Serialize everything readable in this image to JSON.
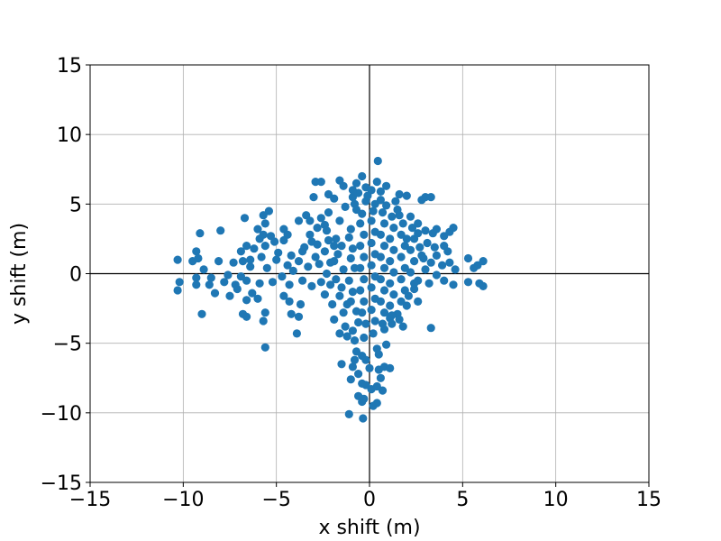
{
  "chart_data": {
    "type": "scatter",
    "title": "",
    "xlabel": "x shift (m)",
    "ylabel": "y shift (m)",
    "xlim": [
      -15,
      15
    ],
    "ylim": [
      -15,
      15
    ],
    "xticks": [
      -15,
      -10,
      -5,
      0,
      5,
      10,
      15
    ],
    "yticks": [
      -15,
      -10,
      -5,
      0,
      5,
      10,
      15
    ],
    "xtick_labels": [
      "−15",
      "−10",
      "−5",
      "0",
      "5",
      "10",
      "15"
    ],
    "ytick_labels": [
      "−15",
      "−10",
      "−5",
      "0",
      "5",
      "10",
      "15"
    ],
    "grid": true,
    "zero_lines": true,
    "marker_color": "#1f77b4",
    "series": [
      {
        "points": [
          [
            0.45,
            8.1
          ],
          [
            -0.4,
            7.0
          ],
          [
            0.9,
            6.3
          ],
          [
            -1.6,
            6.7
          ],
          [
            -2.9,
            6.6
          ],
          [
            -2.6,
            6.6
          ],
          [
            -1.4,
            6.3
          ],
          [
            -0.7,
            6.5
          ],
          [
            -0.2,
            6.2
          ],
          [
            0.1,
            6.0
          ],
          [
            0.6,
            5.9
          ],
          [
            1.6,
            5.7
          ],
          [
            2.0,
            5.6
          ],
          [
            3.0,
            5.5
          ],
          [
            3.3,
            5.5
          ],
          [
            -2.2,
            5.7
          ],
          [
            -3.0,
            5.5
          ],
          [
            -1.9,
            5.4
          ],
          [
            -0.9,
            5.5
          ],
          [
            0.6,
            5.3
          ],
          [
            2.8,
            5.3
          ],
          [
            -5.4,
            4.5
          ],
          [
            -5.7,
            4.2
          ],
          [
            -6.7,
            4.0
          ],
          [
            -3.4,
            4.2
          ],
          [
            -2.6,
            4.0
          ],
          [
            -3.2,
            3.8
          ],
          [
            -2.4,
            3.5
          ],
          [
            -4.6,
            3.2
          ],
          [
            -3.8,
            3.8
          ],
          [
            -5.6,
            3.6
          ],
          [
            -6.0,
            3.2
          ],
          [
            -5.7,
            2.8
          ],
          [
            -5.3,
            2.7
          ],
          [
            -8.0,
            3.1
          ],
          [
            -9.1,
            2.9
          ],
          [
            -4.4,
            2.8
          ],
          [
            -4.6,
            2.4
          ],
          [
            -3.1,
            2.3
          ],
          [
            -2.8,
            2.1
          ],
          [
            -5.6,
            2.0
          ],
          [
            -6.2,
            1.8
          ],
          [
            -6.6,
            2.0
          ],
          [
            -6.9,
            1.6
          ],
          [
            -9.3,
            1.6
          ],
          [
            -5.8,
            1.2
          ],
          [
            -5.0,
            1.0
          ],
          [
            -4.2,
            1.3
          ],
          [
            -3.6,
            1.6
          ],
          [
            -2.9,
            1.2
          ],
          [
            -6.8,
            0.9
          ],
          [
            -7.3,
            0.8
          ],
          [
            -8.1,
            0.9
          ],
          [
            -9.2,
            1.1
          ],
          [
            -9.5,
            0.9
          ],
          [
            -10.3,
            1.0
          ],
          [
            -8.9,
            0.3
          ],
          [
            -6.4,
            0.5
          ],
          [
            -5.5,
            0.4
          ],
          [
            -4.4,
            0.6
          ],
          [
            -3.3,
            0.5
          ],
          [
            -2.7,
            0.7
          ],
          [
            -8.5,
            -0.3
          ],
          [
            -9.3,
            -0.3
          ],
          [
            -7.8,
            -0.6
          ],
          [
            -7.2,
            -0.8
          ],
          [
            -6.6,
            -0.5
          ],
          [
            -5.9,
            -0.7
          ],
          [
            -5.2,
            -0.6
          ],
          [
            -4.3,
            -0.8
          ],
          [
            -3.6,
            -0.5
          ],
          [
            -3.1,
            -0.9
          ],
          [
            -2.6,
            -0.6
          ],
          [
            -10.2,
            -0.6
          ],
          [
            -10.3,
            -1.2
          ],
          [
            -9.3,
            -0.8
          ],
          [
            -8.3,
            -1.4
          ],
          [
            -7.1,
            -1.1
          ],
          [
            -6.3,
            -1.4
          ],
          [
            -6.6,
            -1.9
          ],
          [
            -6.0,
            -1.8
          ],
          [
            -4.6,
            -1.6
          ],
          [
            -4.3,
            -2.0
          ],
          [
            -3.7,
            -2.2
          ],
          [
            -9.0,
            -2.9
          ],
          [
            -6.8,
            -2.9
          ],
          [
            -6.6,
            -3.1
          ],
          [
            -5.6,
            -2.8
          ],
          [
            -5.7,
            -3.4
          ],
          [
            -4.2,
            -2.9
          ],
          [
            -3.8,
            -3.1
          ],
          [
            -3.9,
            -4.3
          ],
          [
            -5.6,
            -5.3
          ],
          [
            -1.9,
            -3.3
          ],
          [
            -1.6,
            -4.3
          ],
          [
            -1.2,
            -4.5
          ],
          [
            -0.8,
            -4.8
          ],
          [
            -0.3,
            -4.6
          ],
          [
            0.2,
            -4.3
          ],
          [
            0.8,
            -4.0
          ],
          [
            1.2,
            -3.6
          ],
          [
            1.8,
            -3.8
          ],
          [
            3.3,
            -3.9
          ],
          [
            -1.5,
            -6.5
          ],
          [
            -0.9,
            -6.7
          ],
          [
            -0.7,
            -5.6
          ],
          [
            -0.4,
            -5.9
          ],
          [
            -0.2,
            -6.2
          ],
          [
            0.4,
            -5.4
          ],
          [
            0.9,
            -5.1
          ],
          [
            -1.0,
            -7.6
          ],
          [
            -0.6,
            -7.2
          ],
          [
            -0.4,
            -7.9
          ],
          [
            -0.2,
            -8.0
          ],
          [
            0.5,
            -6.9
          ],
          [
            0.8,
            -6.7
          ],
          [
            1.1,
            -6.8
          ],
          [
            -0.6,
            -8.8
          ],
          [
            -0.4,
            -9.2
          ],
          [
            0.1,
            -8.3
          ],
          [
            0.4,
            -8.1
          ],
          [
            0.7,
            -8.4
          ],
          [
            -1.1,
            -10.1
          ],
          [
            -0.35,
            -10.4
          ],
          [
            0.2,
            -9.5
          ],
          [
            0.4,
            -9.3
          ],
          [
            -0.3,
            -9.0
          ],
          [
            1.6,
            4.2
          ],
          [
            2.2,
            4.1
          ],
          [
            2.6,
            3.6
          ],
          [
            3.0,
            3.1
          ],
          [
            3.4,
            2.9
          ],
          [
            3.6,
            3.2
          ],
          [
            4.0,
            2.7
          ],
          [
            4.3,
            3.0
          ],
          [
            4.5,
            3.3
          ],
          [
            3.1,
            2.2
          ],
          [
            3.5,
            1.9
          ],
          [
            4.0,
            2.0
          ],
          [
            4.2,
            1.6
          ],
          [
            3.6,
            1.3
          ],
          [
            2.9,
            1.1
          ],
          [
            3.3,
            0.8
          ],
          [
            3.9,
            0.6
          ],
          [
            4.3,
            0.8
          ],
          [
            5.3,
            1.1
          ],
          [
            5.8,
            0.6
          ],
          [
            6.1,
            0.9
          ],
          [
            5.6,
            0.4
          ],
          [
            4.6,
            0.3
          ],
          [
            3.0,
            0.3
          ],
          [
            3.6,
            -0.1
          ],
          [
            4.0,
            -0.5
          ],
          [
            4.5,
            -0.8
          ],
          [
            5.3,
            -0.6
          ],
          [
            5.9,
            -0.7
          ],
          [
            6.1,
            -0.9
          ],
          [
            3.2,
            -0.7
          ],
          [
            2.6,
            -0.5
          ],
          [
            2.4,
            -1.1
          ],
          [
            2.1,
            -1.6
          ],
          [
            2.6,
            -2.0
          ],
          [
            2.0,
            -2.3
          ],
          [
            1.5,
            -2.9
          ],
          [
            1.1,
            -3.2
          ],
          [
            -1.8,
            2.5
          ],
          [
            -1.5,
            2.0
          ],
          [
            -1.7,
            1.4
          ],
          [
            -1.9,
            0.9
          ],
          [
            -1.4,
            0.3
          ],
          [
            -1.8,
            -0.4
          ],
          [
            -1.5,
            -1.0
          ],
          [
            -1.6,
            -1.6
          ],
          [
            -1.2,
            -2.2
          ],
          [
            -1.4,
            -2.8
          ],
          [
            -1.0,
            3.2
          ],
          [
            -1.1,
            2.6
          ],
          [
            -0.9,
            1.8
          ],
          [
            -1.0,
            1.1
          ],
          [
            -0.8,
            0.4
          ],
          [
            -1.1,
            -0.5
          ],
          [
            -0.9,
            -1.3
          ],
          [
            -1.0,
            -2.0
          ],
          [
            -0.7,
            -2.7
          ],
          [
            -0.6,
            -3.5
          ],
          [
            -0.4,
            4.3
          ],
          [
            -0.5,
            3.6
          ],
          [
            -0.3,
            2.8
          ],
          [
            -0.5,
            2.0
          ],
          [
            -0.3,
            1.2
          ],
          [
            -0.5,
            0.4
          ],
          [
            -0.3,
            -0.4
          ],
          [
            -0.5,
            -1.2
          ],
          [
            -0.3,
            -2.0
          ],
          [
            -0.4,
            -2.8
          ],
          [
            -0.2,
            -3.6
          ],
          [
            0.2,
            4.5
          ],
          [
            0.1,
            3.8
          ],
          [
            0.3,
            3.0
          ],
          [
            0.1,
            2.2
          ],
          [
            0.3,
            1.4
          ],
          [
            0.1,
            0.6
          ],
          [
            0.3,
            -0.2
          ],
          [
            0.1,
            -1.0
          ],
          [
            0.3,
            -1.8
          ],
          [
            0.1,
            -2.6
          ],
          [
            0.3,
            -3.4
          ],
          [
            0.7,
            4.4
          ],
          [
            0.8,
            3.6
          ],
          [
            0.6,
            2.8
          ],
          [
            0.8,
            2.0
          ],
          [
            0.6,
            1.2
          ],
          [
            0.8,
            0.4
          ],
          [
            0.6,
            -0.4
          ],
          [
            0.8,
            -1.2
          ],
          [
            0.6,
            -2.0
          ],
          [
            0.8,
            -2.8
          ],
          [
            0.7,
            -3.6
          ],
          [
            1.2,
            4.1
          ],
          [
            1.3,
            3.3
          ],
          [
            1.1,
            2.5
          ],
          [
            1.3,
            1.7
          ],
          [
            1.1,
            0.9
          ],
          [
            1.3,
            0.1
          ],
          [
            1.1,
            -0.7
          ],
          [
            1.3,
            -1.5
          ],
          [
            1.1,
            -2.3
          ],
          [
            1.2,
            -3.0
          ],
          [
            1.8,
            3.6
          ],
          [
            1.7,
            2.8
          ],
          [
            1.9,
            2.0
          ],
          [
            1.7,
            1.2
          ],
          [
            1.9,
            0.4
          ],
          [
            1.7,
            -0.4
          ],
          [
            1.9,
            -1.2
          ],
          [
            1.7,
            -2.0
          ],
          [
            2.3,
            3.3
          ],
          [
            2.4,
            2.5
          ],
          [
            2.2,
            1.7
          ],
          [
            2.4,
            0.9
          ],
          [
            2.2,
            0.1
          ],
          [
            2.4,
            -0.7
          ],
          [
            2.6,
            2.9
          ],
          [
            2.7,
            1.9
          ],
          [
            2.8,
            1.3
          ],
          [
            -2.3,
            3.1
          ],
          [
            -2.2,
            2.4
          ],
          [
            -2.4,
            1.6
          ],
          [
            -2.1,
            0.8
          ],
          [
            -2.3,
            0.0
          ],
          [
            -2.1,
            -0.8
          ],
          [
            -2.4,
            -1.5
          ],
          [
            -2.0,
            -2.2
          ],
          [
            -1.3,
            4.8
          ],
          [
            -0.8,
            5.0
          ],
          [
            -0.2,
            5.2
          ],
          [
            0.3,
            5.0
          ],
          [
            0.9,
            4.9
          ],
          [
            -1.6,
            3.8
          ],
          [
            -0.7,
            4.6
          ],
          [
            1.5,
            4.6
          ],
          [
            0.5,
            -5.8
          ],
          [
            0.0,
            -6.8
          ],
          [
            -0.8,
            -6.2
          ],
          [
            0.6,
            -7.5
          ],
          [
            -1.3,
            -3.8
          ],
          [
            -0.9,
            -4.1
          ],
          [
            1.6,
            -3.3
          ],
          [
            -1.9,
            2.0
          ],
          [
            2.0,
            2.5
          ],
          [
            -0.1,
            5.6
          ],
          [
            -0.6,
            5.8
          ],
          [
            0.4,
            6.6
          ],
          [
            -0.9,
            6.0
          ],
          [
            1.4,
            5.2
          ],
          [
            -2.2,
            4.4
          ],
          [
            -2.8,
            3.3
          ],
          [
            -3.2,
            2.8
          ],
          [
            -3.5,
            1.9
          ],
          [
            -3.8,
            0.9
          ],
          [
            -4.1,
            0.2
          ],
          [
            -4.7,
            -0.2
          ],
          [
            -4.9,
            1.5
          ],
          [
            -5.1,
            2.3
          ],
          [
            -5.9,
            2.5
          ],
          [
            -6.4,
            1.0
          ],
          [
            -7.6,
            -0.1
          ],
          [
            -8.6,
            -0.8
          ],
          [
            -7.5,
            -1.6
          ],
          [
            -6.9,
            -0.2
          ]
        ]
      }
    ]
  }
}
